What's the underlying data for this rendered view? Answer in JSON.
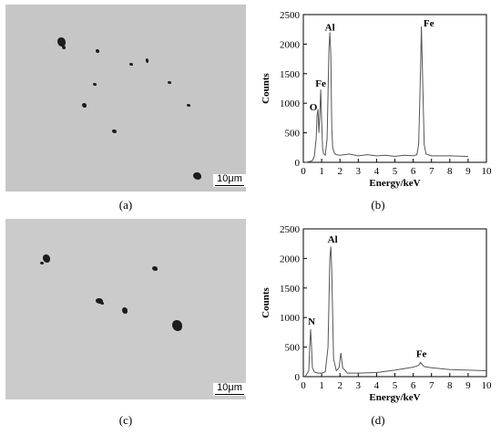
{
  "panels": {
    "a": {
      "caption": "(a)",
      "scale_label": "10μm"
    },
    "b": {
      "caption": "(b)"
    },
    "c": {
      "caption": "(c)",
      "scale_label": "10μm"
    },
    "d": {
      "caption": "(d)"
    }
  },
  "chart_data": [
    {
      "type": "line",
      "panel": "b",
      "xlabel": "Energy/keV",
      "ylabel": "Counts",
      "xlim": [
        0,
        10
      ],
      "ylim": [
        0,
        2500
      ],
      "xticks": [
        0,
        1,
        2,
        3,
        4,
        5,
        6,
        7,
        8,
        9,
        10
      ],
      "yticks": [
        0,
        500,
        1000,
        1500,
        2000,
        2500
      ],
      "series": [
        {
          "x": [
            0.1,
            0.3,
            0.5,
            0.6,
            0.7,
            0.75,
            0.8,
            0.85,
            0.9,
            0.95,
            1.0,
            1.05,
            1.1,
            1.2,
            1.3,
            1.4,
            1.45,
            1.5,
            1.55,
            1.6,
            1.7,
            1.8,
            2.0,
            2.5,
            3.0,
            3.5,
            4.0,
            4.5,
            5.0,
            5.5,
            6.0,
            6.2,
            6.3,
            6.4,
            6.45,
            6.5,
            6.6,
            6.7,
            7.0,
            8.0,
            9.0
          ],
          "y": [
            0,
            10,
            30,
            100,
            400,
            800,
            900,
            500,
            800,
            1230,
            700,
            250,
            150,
            120,
            400,
            1900,
            2200,
            1800,
            600,
            250,
            150,
            130,
            120,
            140,
            110,
            130,
            110,
            120,
            100,
            120,
            110,
            130,
            300,
            1500,
            2300,
            1600,
            300,
            140,
            110,
            110,
            100
          ]
        }
      ],
      "peak_labels": [
        {
          "text": "O",
          "x": 0.55,
          "y": 880
        },
        {
          "text": "Fe",
          "x": 0.95,
          "y": 1280
        },
        {
          "text": "Al",
          "x": 1.45,
          "y": 2230
        },
        {
          "text": "Fe",
          "x": 6.85,
          "y": 2300
        }
      ]
    },
    {
      "type": "line",
      "panel": "d",
      "xlabel": "Energy/keV",
      "ylabel": "Counts",
      "xlim": [
        0,
        10
      ],
      "ylim": [
        0,
        2500
      ],
      "xticks": [
        0,
        1,
        2,
        3,
        4,
        5,
        6,
        7,
        8,
        9,
        10
      ],
      "yticks": [
        0,
        500,
        1000,
        1500,
        2000,
        2500
      ],
      "series": [
        {
          "x": [
            0.1,
            0.3,
            0.35,
            0.4,
            0.45,
            0.5,
            0.6,
            0.8,
            1.0,
            1.2,
            1.35,
            1.45,
            1.5,
            1.55,
            1.65,
            1.8,
            1.95,
            2.05,
            2.15,
            2.4,
            3.0,
            4.0,
            5.0,
            6.0,
            6.3,
            6.4,
            6.5,
            6.6,
            6.8,
            7.0,
            8.0,
            9.0,
            10.0
          ],
          "y": [
            0,
            100,
            500,
            800,
            500,
            150,
            80,
            60,
            60,
            80,
            500,
            2000,
            2200,
            1800,
            300,
            100,
            150,
            400,
            150,
            60,
            60,
            70,
            110,
            160,
            190,
            240,
            200,
            170,
            160,
            150,
            120,
            110,
            100
          ]
        }
      ],
      "peak_labels": [
        {
          "text": "N",
          "x": 0.45,
          "y": 880
        },
        {
          "text": "Al",
          "x": 1.6,
          "y": 2270
        },
        {
          "text": "Fe",
          "x": 6.45,
          "y": 330
        }
      ]
    }
  ]
}
